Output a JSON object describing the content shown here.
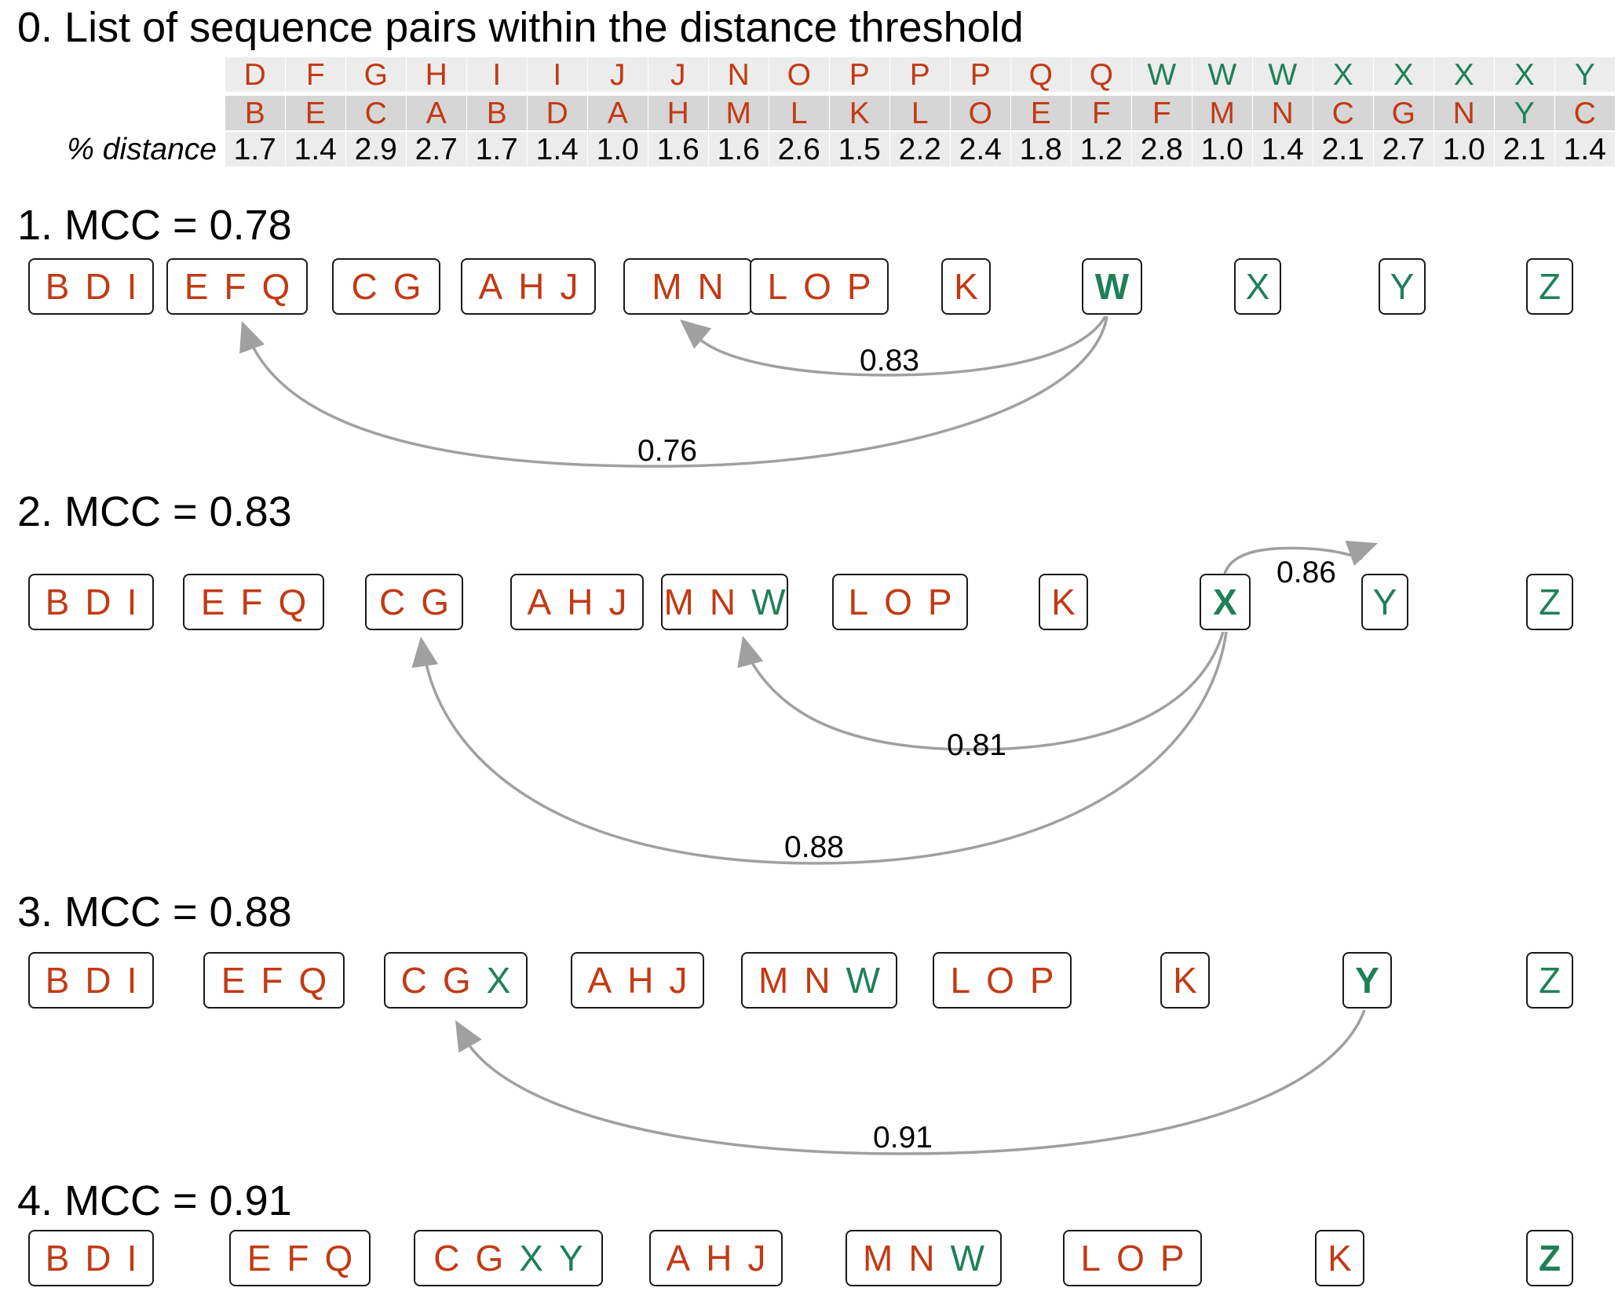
{
  "colors": {
    "red": "#c23a14",
    "green": "#1f8058",
    "arrow": "#a0a0a0",
    "row_light": "#ececec",
    "row_dark": "#d6d6d6"
  },
  "pairs_section": {
    "title": "0. List of sequence pairs within the distance threshold",
    "row_label": "% distance",
    "pairs": [
      {
        "a": "D",
        "b": "B",
        "d": "1.7"
      },
      {
        "a": "F",
        "b": "E",
        "d": "1.4"
      },
      {
        "a": "G",
        "b": "C",
        "d": "2.9"
      },
      {
        "a": "H",
        "b": "A",
        "d": "2.7"
      },
      {
        "a": "I",
        "b": "B",
        "d": "1.7"
      },
      {
        "a": "I",
        "b": "D",
        "d": "1.4"
      },
      {
        "a": "J",
        "b": "A",
        "d": "1.0"
      },
      {
        "a": "J",
        "b": "H",
        "d": "1.6"
      },
      {
        "a": "N",
        "b": "M",
        "d": "1.6"
      },
      {
        "a": "O",
        "b": "L",
        "d": "2.6"
      },
      {
        "a": "P",
        "b": "K",
        "d": "1.5"
      },
      {
        "a": "P",
        "b": "L",
        "d": "2.2"
      },
      {
        "a": "P",
        "b": "O",
        "d": "2.4"
      },
      {
        "a": "Q",
        "b": "E",
        "d": "1.8"
      },
      {
        "a": "Q",
        "b": "F",
        "d": "1.2"
      },
      {
        "a": "W",
        "b": "F",
        "d": "2.8"
      },
      {
        "a": "W",
        "b": "M",
        "d": "1.0"
      },
      {
        "a": "W",
        "b": "N",
        "d": "1.4"
      },
      {
        "a": "X",
        "b": "C",
        "d": "2.1"
      },
      {
        "a": "X",
        "b": "G",
        "d": "2.7"
      },
      {
        "a": "X",
        "b": "N",
        "d": "1.0"
      },
      {
        "a": "X",
        "b": "Y",
        "d": "2.1"
      },
      {
        "a": "Y",
        "b": "C",
        "d": "1.4"
      }
    ]
  },
  "steps": [
    {
      "title": "1. MCC = 0.78",
      "clusters": [
        [
          "B",
          "D",
          "I"
        ],
        [
          "E",
          "F",
          "Q"
        ],
        [
          "C",
          "G"
        ],
        [
          "A",
          "H",
          "J"
        ],
        [
          "M",
          "N"
        ],
        [
          "L",
          "O",
          "P"
        ],
        [
          "K"
        ],
        [
          "W"
        ],
        [
          "X"
        ],
        [
          "Y"
        ],
        [
          "Z"
        ]
      ],
      "focus": "W",
      "arcs": [
        {
          "label": "0.83"
        },
        {
          "label": "0.76"
        }
      ]
    },
    {
      "title": "2. MCC = 0.83",
      "clusters": [
        [
          "B",
          "D",
          "I"
        ],
        [
          "E",
          "F",
          "Q"
        ],
        [
          "C",
          "G"
        ],
        [
          "A",
          "H",
          "J"
        ],
        [
          "M",
          "N",
          "W"
        ],
        [
          "L",
          "O",
          "P"
        ],
        [
          "K"
        ],
        [
          "X"
        ],
        [
          "Y"
        ],
        [
          "Z"
        ]
      ],
      "focus": "X",
      "arcs": [
        {
          "label": "0.86"
        },
        {
          "label": "0.81"
        },
        {
          "label": "0.88"
        }
      ]
    },
    {
      "title": "3. MCC = 0.88",
      "clusters": [
        [
          "B",
          "D",
          "I"
        ],
        [
          "E",
          "F",
          "Q"
        ],
        [
          "C",
          "G",
          "X"
        ],
        [
          "A",
          "H",
          "J"
        ],
        [
          "M",
          "N",
          "W"
        ],
        [
          "L",
          "O",
          "P"
        ],
        [
          "K"
        ],
        [
          "Y"
        ],
        [
          "Z"
        ]
      ],
      "focus": "Y",
      "arcs": [
        {
          "label": "0.91"
        }
      ]
    },
    {
      "title": "4. MCC = 0.91",
      "clusters": [
        [
          "B",
          "D",
          "I"
        ],
        [
          "E",
          "F",
          "Q"
        ],
        [
          "C",
          "G",
          "X",
          "Y"
        ],
        [
          "A",
          "H",
          "J"
        ],
        [
          "M",
          "N",
          "W"
        ],
        [
          "L",
          "O",
          "P"
        ],
        [
          "K"
        ],
        [
          "Z"
        ]
      ],
      "focus": "Z",
      "arcs": []
    }
  ]
}
